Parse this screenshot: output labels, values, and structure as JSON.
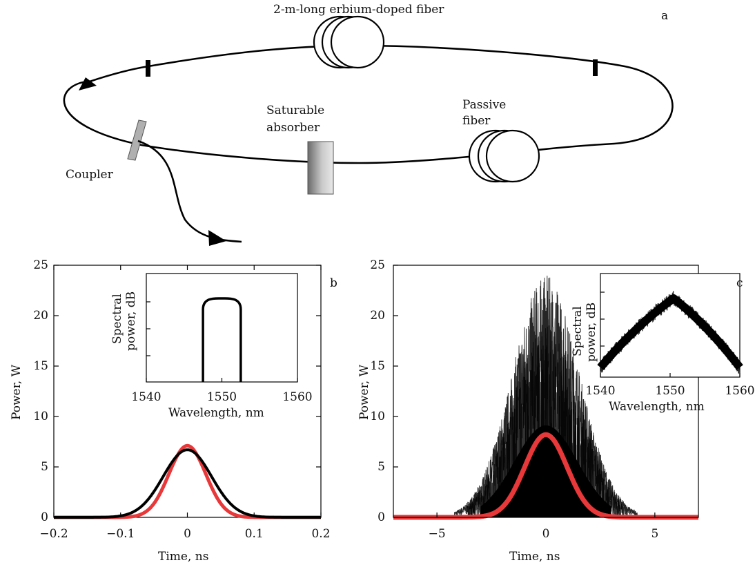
{
  "diagram": {
    "panel_label": "a",
    "erbium_fiber_label": "2-m-long erbium-doped fiber",
    "saturable_label_line1": "Saturable",
    "saturable_label_line2": "absorber",
    "passive_label_line1": "Passive",
    "passive_label_line2": "fiber",
    "coupler_label": "Coupler"
  },
  "panels": {
    "b": {
      "panel_label": "b",
      "xlabel": "Time, ns",
      "ylabel": "Power, W",
      "xticks": [
        "−0.2",
        "−0.1",
        "0",
        "0.1",
        "0.2"
      ],
      "yticks": [
        "0",
        "5",
        "10",
        "15",
        "20",
        "25"
      ],
      "inset": {
        "xlabel": "Wavelength, nm",
        "ylabel_line1": "Spectral",
        "ylabel_line2": "power, dB",
        "xticks": [
          "1540",
          "1550",
          "1560"
        ]
      }
    },
    "c": {
      "panel_label": "c",
      "xlabel": "Time, ns",
      "ylabel": "Power, W",
      "xticks": [
        "−5",
        "0",
        "5"
      ],
      "yticks": [
        "0",
        "5",
        "10",
        "15",
        "20",
        "25"
      ],
      "inset": {
        "xlabel": "Wavelength, nm",
        "ylabel_line1": "Spectral",
        "ylabel_line2": "power, dB",
        "xticks": [
          "1540",
          "1550",
          "1560"
        ]
      }
    }
  },
  "chart_data": [
    {
      "type": "line",
      "panel": "b",
      "xlim": [
        -0.2,
        0.2
      ],
      "ylim": [
        0,
        25
      ],
      "series": [
        {
          "color": "#e8383a",
          "peak": 7.1,
          "center": 0,
          "fwhm": 0.065
        },
        {
          "color": "#000000",
          "peak": 6.7,
          "center": 0,
          "fwhm": 0.085
        }
      ],
      "inset": {
        "type": "line",
        "xlim": [
          1540,
          1560
        ],
        "shape": "flat-top",
        "edges": [
          1547.5,
          1552.5
        ],
        "color": "#000000"
      }
    },
    {
      "type": "line",
      "panel": "c",
      "xlim": [
        -7,
        7
      ],
      "ylim": [
        0,
        25
      ],
      "series": [
        {
          "color": "#000000",
          "style": "noise",
          "envelope_peak": 24,
          "center": 0,
          "fwhm": 3.6
        },
        {
          "color": "#e8383a",
          "peak": 8.2,
          "center": 0,
          "fwhm": 2.3
        }
      ],
      "inset": {
        "type": "line",
        "xlim": [
          1540,
          1560
        ],
        "shape": "noisy-triangle",
        "peak_x": 1550.5,
        "color": "#000000"
      }
    }
  ]
}
